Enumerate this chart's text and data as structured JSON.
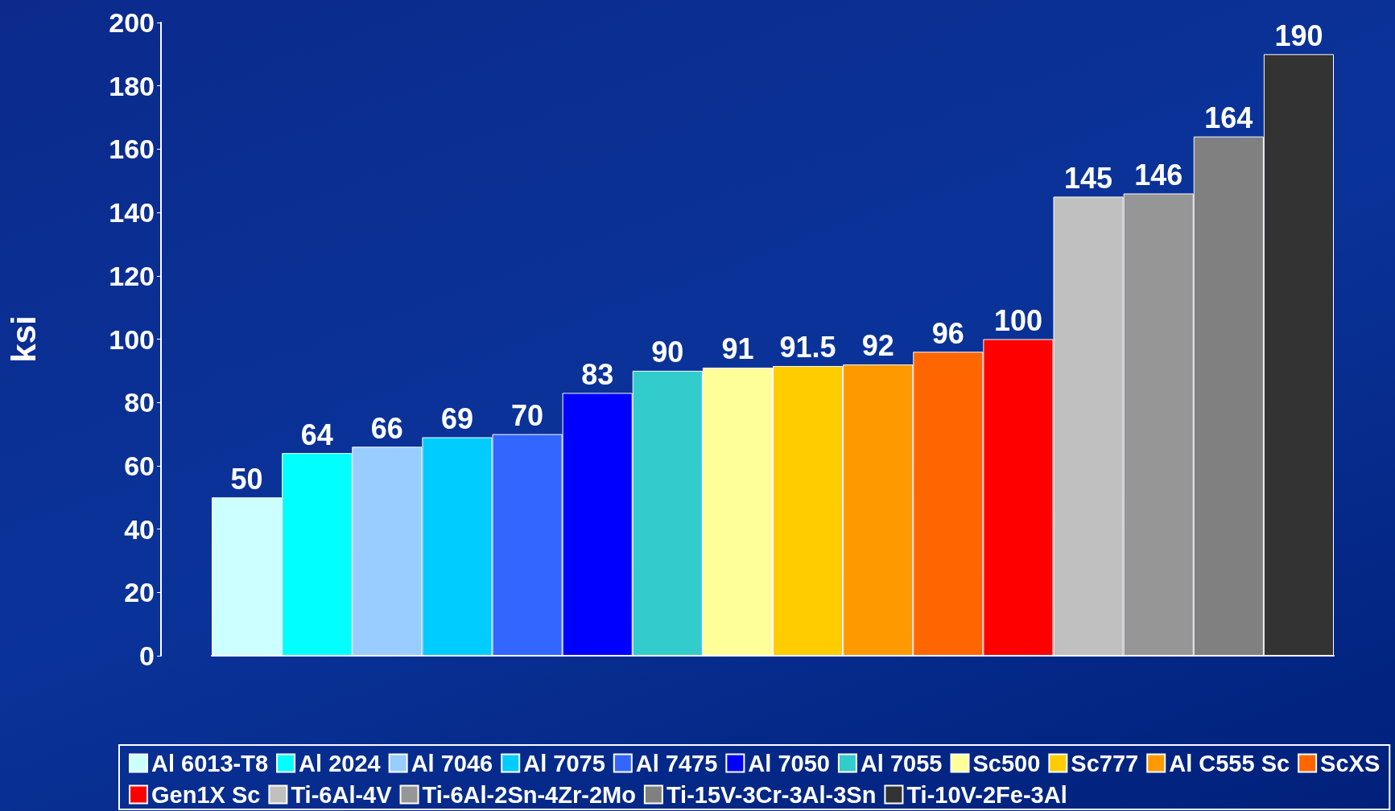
{
  "chart_data": {
    "type": "bar",
    "ylabel": "ksi",
    "stacked": true,
    "data_labels": true,
    "legend": "bottom",
    "grid": false,
    "categories": [
      null,
      null,
      null,
      null,
      null,
      null,
      null,
      null,
      null,
      null,
      null,
      null,
      null,
      null,
      null,
      null
    ],
    "ylim": [
      0,
      200
    ],
    "yticks": [
      0,
      20,
      40,
      60,
      80,
      100,
      120,
      140,
      160,
      180,
      200
    ],
    "series": [
      {
        "name": "Al 6013-T8",
        "color": "#ccffff",
        "values": [
          50,
          null,
          null,
          null,
          null,
          null,
          null,
          null,
          null,
          null,
          null,
          null,
          null,
          null,
          null,
          null
        ]
      },
      {
        "name": "Al 2024",
        "color": "#00ffff",
        "values": [
          null,
          64,
          null,
          null,
          null,
          null,
          null,
          null,
          null,
          null,
          null,
          null,
          null,
          null,
          null,
          null
        ]
      },
      {
        "name": "Al 7046",
        "color": "#99ccff",
        "values": [
          null,
          null,
          66,
          null,
          null,
          null,
          null,
          null,
          null,
          null,
          null,
          null,
          null,
          null,
          null,
          null
        ]
      },
      {
        "name": "Al 7075",
        "color": "#00ccff",
        "values": [
          null,
          null,
          null,
          69,
          null,
          null,
          null,
          null,
          null,
          null,
          null,
          null,
          null,
          null,
          null,
          null
        ]
      },
      {
        "name": "Al 7475",
        "color": "#3366ff",
        "values": [
          null,
          null,
          null,
          null,
          70,
          null,
          null,
          null,
          null,
          null,
          null,
          null,
          null,
          null,
          null,
          null
        ]
      },
      {
        "name": "Al 7050",
        "color": "#0000ff",
        "values": [
          null,
          null,
          null,
          null,
          null,
          83,
          null,
          null,
          null,
          null,
          null,
          null,
          null,
          null,
          null,
          null
        ]
      },
      {
        "name": "Al 7055",
        "color": "#33cccc",
        "values": [
          null,
          null,
          null,
          null,
          null,
          null,
          90,
          null,
          null,
          null,
          null,
          null,
          null,
          null,
          null,
          null
        ]
      },
      {
        "name": "Sc500",
        "color": "#ffff99",
        "values": [
          null,
          null,
          null,
          null,
          null,
          null,
          null,
          91,
          null,
          null,
          null,
          null,
          null,
          null,
          null,
          null
        ]
      },
      {
        "name": "Sc777",
        "color": "#ffcc00",
        "values": [
          null,
          null,
          null,
          null,
          null,
          null,
          null,
          null,
          91.5,
          null,
          null,
          null,
          null,
          null,
          null,
          null
        ]
      },
      {
        "name": "Al C555 Sc",
        "color": "#ff9900",
        "values": [
          null,
          null,
          null,
          null,
          null,
          null,
          null,
          null,
          null,
          92,
          null,
          null,
          null,
          null,
          null,
          null
        ]
      },
      {
        "name": "ScXS",
        "color": "#ff6600",
        "values": [
          null,
          null,
          null,
          null,
          null,
          null,
          null,
          null,
          null,
          null,
          96,
          null,
          null,
          null,
          null,
          null
        ]
      },
      {
        "name": "Gen1X Sc",
        "color": "#ff0000",
        "values": [
          null,
          null,
          null,
          null,
          null,
          null,
          null,
          null,
          null,
          null,
          null,
          100,
          null,
          null,
          null,
          null
        ]
      },
      {
        "name": "Ti-6Al-4V",
        "color": "#c0c0c0",
        "values": [
          null,
          null,
          null,
          null,
          null,
          null,
          null,
          null,
          null,
          null,
          null,
          null,
          145,
          null,
          null,
          null
        ]
      },
      {
        "name": "Ti-6Al-2Sn-4Zr-2Mo",
        "color": "#969696",
        "values": [
          null,
          null,
          null,
          null,
          null,
          null,
          null,
          null,
          null,
          null,
          null,
          null,
          null,
          146,
          null,
          null
        ]
      },
      {
        "name": "Ti-15V-3Cr-3Al-3Sn",
        "color": "#808080",
        "values": [
          null,
          null,
          null,
          null,
          null,
          null,
          null,
          null,
          null,
          null,
          null,
          null,
          null,
          null,
          164,
          null
        ]
      },
      {
        "name": "Ti-10V-2Fe-3Al",
        "color": "#333333",
        "values": [
          null,
          null,
          null,
          null,
          null,
          null,
          null,
          null,
          null,
          null,
          null,
          null,
          null,
          null,
          null,
          190
        ]
      }
    ]
  }
}
